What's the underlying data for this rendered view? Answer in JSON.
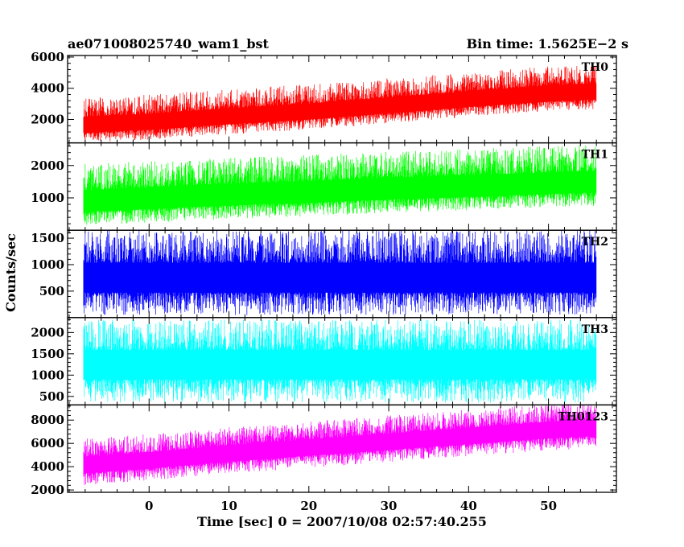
{
  "header": {
    "left_title": "ae071008025740_wam1_bst",
    "right_title": "Bin time: 1.5625E−2 s"
  },
  "axes": {
    "ylabel": "Counts/sec",
    "xlabel": "Time [sec] 0 = 2007/10/08 02:57:40.255"
  },
  "chart_data": [
    {
      "type": "line",
      "panel_label": "TH0",
      "color": "#ff0000",
      "x_range": [
        -8.2,
        56.0
      ],
      "bin_time": 0.015625,
      "ylim": [
        500,
        6100
      ],
      "yticks": [
        2000,
        4000,
        6000
      ],
      "trend": {
        "x": [
          -8.2,
          0,
          10,
          20,
          30,
          40,
          50,
          56
        ],
        "y": [
          1500,
          1700,
          2050,
          2350,
          2750,
          3150,
          3500,
          3650
        ]
      },
      "noise_range": [
        -1000,
        1900
      ]
    },
    {
      "type": "line",
      "panel_label": "TH1",
      "color": "#00ff00",
      "x_range": [
        -8.2,
        56.0
      ],
      "bin_time": 0.015625,
      "ylim": [
        0,
        2700
      ],
      "yticks": [
        1000,
        2000
      ],
      "trend": {
        "x": [
          -8.2,
          0,
          10,
          20,
          30,
          40,
          50,
          56
        ],
        "y": [
          800,
          880,
          1000,
          1080,
          1180,
          1260,
          1350,
          1400
        ]
      },
      "noise_range": [
        -650,
        1250
      ]
    },
    {
      "type": "line",
      "panel_label": "TH2",
      "color": "#0000ff",
      "x_range": [
        -8.2,
        56.0
      ],
      "bin_time": 0.015625,
      "ylim": [
        0,
        1650
      ],
      "yticks": [
        500,
        1000,
        1500
      ],
      "trend": {
        "x": [
          -8.2,
          0,
          10,
          20,
          30,
          40,
          50,
          56
        ],
        "y": [
          700,
          700,
          700,
          700,
          700,
          700,
          700,
          700
        ]
      },
      "noise_range": [
        -650,
        950
      ]
    },
    {
      "type": "line",
      "panel_label": "TH3",
      "color": "#00ffff",
      "x_range": [
        -8.2,
        56.0
      ],
      "bin_time": 0.015625,
      "ylim": [
        300,
        2350
      ],
      "yticks": [
        500,
        1000,
        1500,
        2000
      ],
      "trend": {
        "x": [
          -8.2,
          0,
          10,
          20,
          30,
          40,
          50,
          56
        ],
        "y": [
          1200,
          1200,
          1200,
          1200,
          1200,
          1200,
          1200,
          1200
        ]
      },
      "noise_range": [
        -850,
        1100
      ]
    },
    {
      "type": "line",
      "panel_label": "TH0123",
      "color": "#ff00ff",
      "x_range": [
        -8.2,
        56.0
      ],
      "bin_time": 0.015625,
      "ylim": [
        1800,
        9300
      ],
      "yticks": [
        2000,
        4000,
        6000,
        8000
      ],
      "trend": {
        "x": [
          -8.2,
          0,
          10,
          20,
          30,
          40,
          50,
          56
        ],
        "y": [
          4000,
          4400,
          5000,
          5500,
          6000,
          6500,
          7000,
          7200
        ]
      },
      "noise_range": [
        -1600,
        2400
      ]
    }
  ],
  "x_axis": {
    "xlim": [
      -10.2,
      58.5
    ],
    "major_ticks": [
      0,
      10,
      20,
      30,
      40,
      50
    ],
    "tick_labels": [
      "0",
      "10",
      "20",
      "30",
      "40",
      "50"
    ],
    "minor_step": 2
  }
}
